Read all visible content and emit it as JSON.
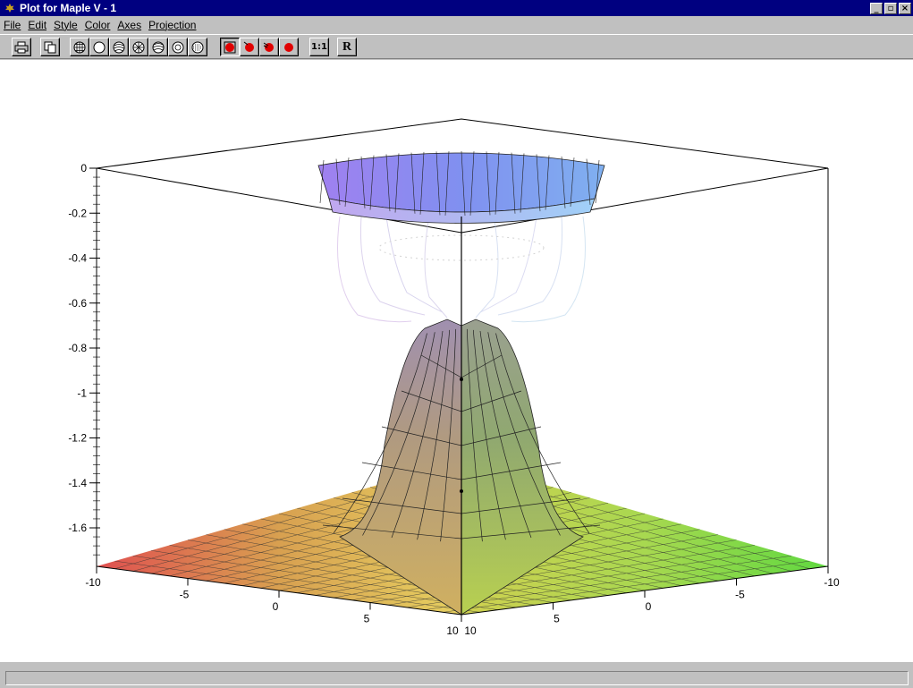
{
  "window": {
    "title": "Plot for Maple V - 1",
    "controls": [
      "minimize",
      "maximize",
      "close"
    ]
  },
  "menubar": {
    "items": [
      "File",
      "Edit",
      "Style",
      "Color",
      "Axes",
      "Projection"
    ]
  },
  "toolbar": {
    "print_icon": "printer-icon",
    "copy_icon": "copy-icon",
    "style_buttons": [
      "wireframe-patch-icon",
      "patch-icon",
      "contour-patch-icon",
      "patch-nogrid-icon",
      "contour-icon",
      "hidden-line-icon",
      "point-icon"
    ],
    "light_buttons": [
      "light-1-icon",
      "light-2-icon",
      "light-3-icon",
      "light-4-icon"
    ],
    "scale_label": "1:1",
    "redraw_label": "R"
  },
  "plot": {
    "z_ticks": [
      "0",
      "-0.2",
      "-0.4",
      "-0.6",
      "-0.8",
      "-1",
      "-1.2",
      "-1.4",
      "-1.6"
    ],
    "left_axis_ticks": [
      "-10",
      "-5",
      "0",
      "5",
      "10"
    ],
    "right_axis_ticks": [
      "10",
      "5",
      "0",
      "-5",
      "-10"
    ]
  },
  "status": {
    "text": ""
  }
}
